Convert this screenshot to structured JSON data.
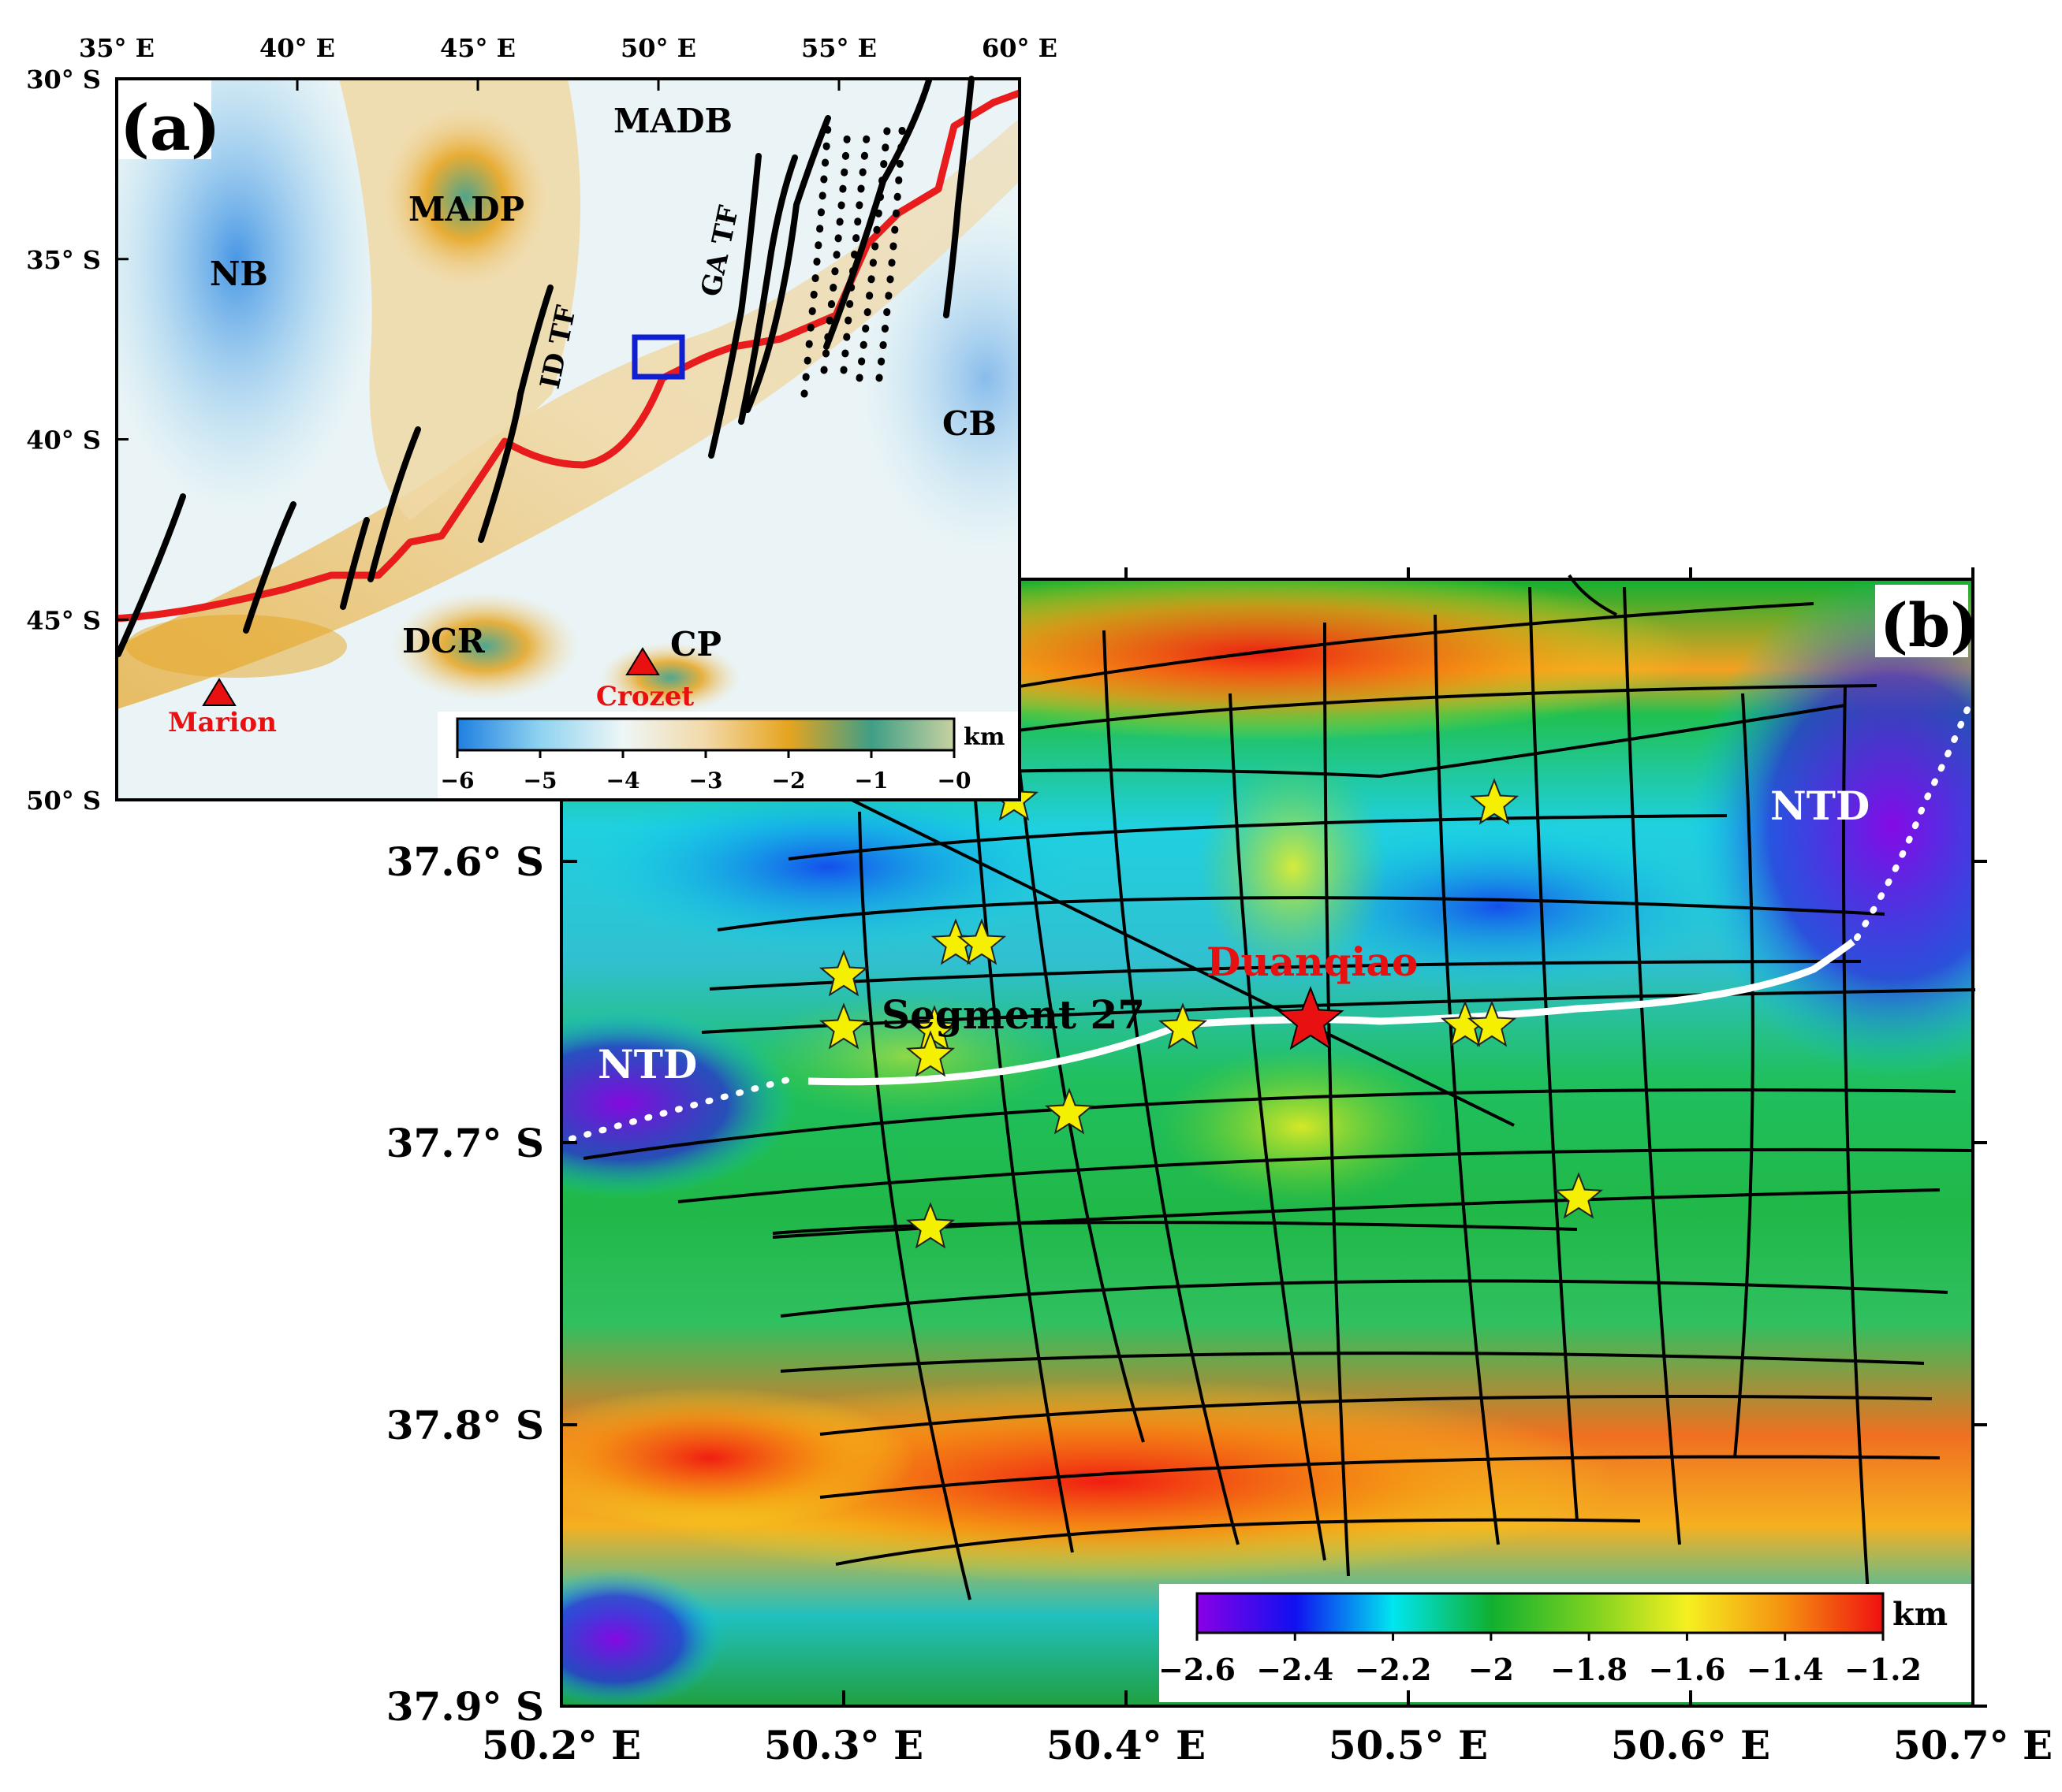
{
  "panel_a": {
    "panel_label": "(a)",
    "lon_ticks": [
      "35° E",
      "40° E",
      "45° E",
      "50° E",
      "55° E",
      "60° E"
    ],
    "lat_ticks": [
      "30° S",
      "35° S",
      "40° S",
      "45° S",
      "50° S"
    ],
    "features": {
      "madb": "MADB",
      "madp": "MADP",
      "nb": "NB",
      "idtf": "ID TF",
      "gatf": "GA TF",
      "cb": "CB",
      "dcr": "DCR",
      "cp": "CP"
    },
    "hotspots": {
      "marion": "Marion",
      "crozet": "Crozet"
    },
    "colorbar": {
      "unit": "km",
      "ticks": [
        "−6",
        "−5",
        "−4",
        "−3",
        "−2",
        "−1",
        "−0"
      ],
      "colors": [
        "#1f7fe0",
        "#8fd3f0",
        "#eef6f6",
        "#f2d9a8",
        "#e6a41f",
        "#3f9e86",
        "#c8d2a0"
      ]
    }
  },
  "panel_b": {
    "panel_label": "(b)",
    "lon_ticks": [
      "50.2° E",
      "50.3° E",
      "50.4° E",
      "50.5° E",
      "50.6° E",
      "50.7° E"
    ],
    "lat_ticks": [
      "37.6° S",
      "37.7° S",
      "37.8° S",
      "37.9° S"
    ],
    "labels": {
      "ntd_left": "NTD",
      "ntd_right": "NTD",
      "segment": "Segment 27",
      "site": "Duanqiao"
    },
    "colorbar": {
      "unit": "km",
      "ticks": [
        "−2.6",
        "−2.4",
        "−2.2",
        "−2",
        "−1.8",
        "−1.6",
        "−1.4",
        "−1.2"
      ],
      "colors": [
        "#8a00e6",
        "#1010f0",
        "#00e6f0",
        "#10b030",
        "#7ad020",
        "#f5f020",
        "#f59010",
        "#f01010"
      ]
    }
  },
  "colors": {
    "ridge": "#e81c1c",
    "fault": "#000000",
    "box": "#1020d0",
    "star": "#f5f000",
    "site_star": "#e81010",
    "hotspot": "#e81010",
    "ntd_line": "#ffffff"
  }
}
